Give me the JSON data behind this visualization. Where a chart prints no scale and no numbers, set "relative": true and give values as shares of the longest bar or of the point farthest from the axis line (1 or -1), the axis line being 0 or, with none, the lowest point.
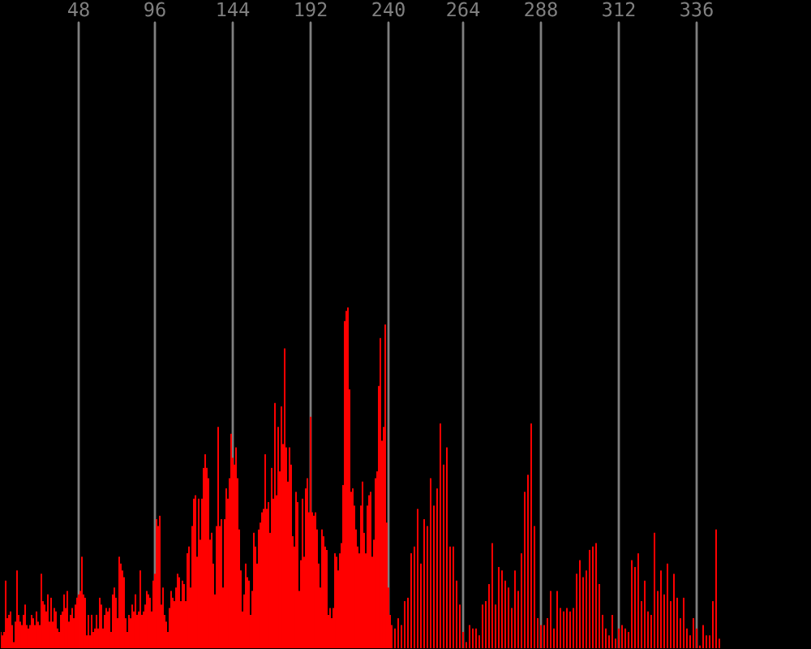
{
  "chart_data": {
    "type": "bar",
    "relative": true,
    "grid": "x",
    "color": "#ff0000",
    "categories": [
      null,
      null,
      null,
      null,
      null,
      null,
      null,
      null,
      null,
      null,
      null,
      null,
      null,
      null,
      null,
      null,
      null,
      null,
      null,
      null,
      null,
      null,
      null,
      null,
      null,
      null,
      null,
      null,
      null,
      null,
      null,
      null,
      null,
      null,
      null,
      null,
      null,
      null,
      null,
      null,
      null,
      null,
      null,
      null,
      null,
      null,
      null,
      null,
      "48",
      null,
      null,
      null,
      null,
      null,
      null,
      null,
      null,
      null,
      null,
      null,
      null,
      null,
      null,
      null,
      null,
      null,
      null,
      null,
      null,
      null,
      null,
      null,
      null,
      null,
      null,
      null,
      null,
      null,
      null,
      null,
      null,
      null,
      null,
      null,
      null,
      null,
      null,
      null,
      null,
      null,
      null,
      null,
      null,
      null,
      null,
      "96",
      null,
      null,
      null,
      null,
      null,
      null,
      null,
      null,
      null,
      null,
      null,
      null,
      null,
      null,
      null,
      null,
      null,
      null,
      null,
      null,
      null,
      null,
      null,
      null,
      null,
      null,
      null,
      null,
      null,
      null,
      null,
      null,
      null,
      null,
      null,
      null,
      null,
      null,
      null,
      null,
      null,
      null,
      null,
      null,
      null,
      null,
      null,
      "144",
      null,
      null,
      null,
      null,
      null,
      null,
      null,
      null,
      null,
      null,
      null,
      null,
      null,
      null,
      null,
      null,
      null,
      null,
      null,
      null,
      null,
      null,
      null,
      null,
      null,
      null,
      null,
      null,
      null,
      null,
      null,
      null,
      null,
      null,
      null,
      null,
      null,
      null,
      null,
      null,
      null,
      null,
      null,
      null,
      null,
      null,
      null,
      "192",
      null,
      null,
      null,
      null,
      null,
      null,
      null,
      null,
      null,
      null,
      null,
      null,
      null,
      null,
      null,
      null,
      null,
      null,
      null,
      null,
      null,
      null,
      null,
      null,
      null,
      null,
      null,
      null,
      null,
      null,
      null,
      null,
      null,
      null,
      null,
      null,
      null,
      null,
      null,
      null,
      null,
      null,
      null,
      null,
      null,
      null,
      null,
      "240",
      null,
      null,
      null,
      null,
      null,
      null,
      null,
      null,
      null,
      null,
      null,
      null,
      null,
      null,
      null,
      null,
      null,
      null,
      null,
      null,
      null,
      null,
      null,
      null,
      null,
      null,
      null,
      null,
      null,
      null,
      null,
      null,
      null,
      null,
      null,
      null,
      null,
      null,
      null,
      null,
      null,
      null,
      null,
      null,
      null,
      "264",
      null,
      null,
      null,
      null,
      null,
      null,
      null,
      null,
      null,
      null,
      null,
      null,
      null,
      null,
      null,
      null,
      null,
      null,
      null,
      null,
      null,
      null,
      null,
      null,
      null,
      null,
      null,
      null,
      null,
      null,
      null,
      null,
      null,
      null,
      null,
      null,
      null,
      null,
      null,
      null,
      null,
      null,
      null,
      null,
      null,
      null,
      null,
      "288",
      null,
      null,
      null,
      null,
      null,
      null,
      null,
      null,
      null,
      null,
      null,
      null,
      null,
      null,
      null,
      null,
      null,
      null,
      null,
      null,
      null,
      null,
      null,
      null,
      null,
      null,
      null,
      null,
      null,
      null,
      null,
      null,
      null,
      null,
      null,
      null,
      null,
      null,
      null,
      null,
      null,
      null,
      null,
      null,
      null,
      null,
      null,
      "312",
      null,
      null,
      null,
      null,
      null,
      null,
      null,
      null,
      null,
      null,
      null,
      null,
      null,
      null,
      null,
      null,
      null,
      null,
      null,
      null,
      null,
      null,
      null,
      null,
      null,
      null,
      null,
      null,
      null,
      null,
      null,
      null,
      null,
      null,
      null,
      null,
      null,
      null,
      null,
      null,
      null,
      null,
      null,
      null,
      null,
      null,
      null,
      "336",
      null,
      null,
      null,
      null,
      null,
      null,
      null,
      null,
      null,
      null,
      null,
      null,
      null,
      null
    ],
    "values": [
      0.05,
      0.04,
      0.05,
      0.2,
      0.09,
      0.1,
      0.11,
      0.07,
      0.02,
      0.08,
      0.23,
      0.1,
      0.08,
      0.07,
      0.1,
      0.13,
      0.07,
      0.06,
      0.07,
      0.1,
      0.09,
      0.07,
      0.11,
      0.08,
      0.07,
      0.22,
      0.14,
      0.13,
      0.11,
      0.16,
      0.08,
      0.15,
      0.08,
      0.12,
      0.11,
      0.06,
      0.05,
      0.1,
      0.11,
      0.16,
      0.12,
      0.17,
      0.08,
      0.1,
      0.12,
      0.09,
      0.13,
      0.15,
      0.16,
      0.17,
      0.27,
      0.16,
      0.15,
      0.04,
      0.1,
      0.04,
      0.1,
      0.05,
      0.06,
      0.1,
      0.06,
      0.15,
      0.13,
      0.06,
      0.1,
      0.12,
      0.11,
      0.12,
      0.05,
      0.16,
      0.18,
      0.15,
      0.09,
      0.27,
      0.25,
      0.23,
      0.21,
      0.09,
      0.05,
      0.1,
      0.09,
      0.13,
      0.11,
      0.16,
      0.1,
      0.11,
      0.23,
      0.1,
      0.11,
      0.13,
      0.17,
      0.16,
      0.15,
      0.11,
      0.2,
      0.22,
      0.38,
      0.36,
      0.39,
      0.13,
      0.18,
      0.1,
      0.08,
      0.05,
      0.12,
      0.17,
      0.15,
      0.14,
      0.18,
      0.22,
      0.21,
      0.14,
      0.2,
      0.19,
      0.14,
      0.28,
      0.3,
      0.18,
      0.36,
      0.44,
      0.45,
      0.27,
      0.44,
      0.32,
      0.44,
      0.53,
      0.57,
      0.53,
      0.5,
      0.32,
      0.34,
      0.25,
      0.16,
      0.36,
      0.65,
      0.36,
      0.38,
      0.18,
      0.38,
      0.47,
      0.44,
      0.5,
      0.63,
      0.56,
      0.54,
      0.59,
      0.5,
      0.35,
      0.23,
      0.11,
      0.16,
      0.25,
      0.21,
      0.2,
      0.1,
      0.17,
      0.34,
      0.3,
      0.25,
      0.35,
      0.37,
      0.4,
      0.41,
      0.57,
      0.41,
      0.43,
      0.34,
      0.53,
      0.44,
      0.72,
      0.45,
      0.65,
      0.52,
      0.71,
      0.6,
      0.88,
      0.59,
      0.49,
      0.59,
      0.54,
      0.33,
      0.3,
      0.46,
      0.43,
      0.17,
      0.26,
      0.44,
      0.27,
      0.47,
      0.5,
      0.4,
      0.68,
      0.4,
      0.39,
      0.4,
      0.35,
      0.25,
      0.18,
      0.35,
      0.33,
      0.3,
      0.29,
      0.1,
      0.12,
      0.09,
      0.12,
      0.28,
      0.27,
      0.23,
      0.28,
      0.31,
      0.48,
      0.96,
      0.99,
      1,
      0.76,
      0.46,
      0.47,
      0.42,
      0.35,
      0.3,
      0.28,
      0.42,
      0.49,
      0.34,
      0.28,
      0.42,
      0.45,
      0.46,
      0.27,
      0.32,
      0.5,
      0.52,
      0.77,
      0.91,
      0.61,
      0.65,
      0.95,
      0.37,
      0.18,
      0.1,
      0.07,
      null,
      0.06,
      null,
      0.09,
      null,
      0.07,
      null,
      0.14,
      null,
      0.15,
      null,
      0.28,
      null,
      0.3,
      null,
      0.41,
      null,
      0.25,
      null,
      0.38,
      null,
      0.36,
      null,
      0.5,
      null,
      0.42,
      null,
      0.47,
      null,
      0.66,
      null,
      0.54,
      null,
      0.59,
      null,
      0.3,
      null,
      0.3,
      null,
      0.2,
      null,
      0.13,
      null,
      0.05,
      null,
      0.02,
      null,
      0.07,
      null,
      0.06,
      null,
      0.06,
      null,
      0.04,
      null,
      0.13,
      null,
      0.14,
      null,
      0.19,
      null,
      0.31,
      null,
      0.13,
      null,
      0.24,
      null,
      0.23,
      null,
      0.2,
      null,
      0.18,
      null,
      0.12,
      null,
      0.23,
      null,
      0.17,
      null,
      0.28,
      null,
      0.46,
      null,
      0.51,
      null,
      0.66,
      null,
      0.36,
      null,
      0.09,
      null,
      0.07,
      null,
      0.07,
      null,
      0.09,
      null,
      0.17,
      null,
      0.06,
      null,
      0.17,
      null,
      0.12,
      null,
      0.11,
      null,
      0.12,
      null,
      0.11,
      null,
      0.12,
      null,
      0.22,
      null,
      0.26,
      null,
      0.21,
      null,
      0.23,
      null,
      0.29,
      null,
      0.3,
      null,
      0.31,
      null,
      0.19,
      null,
      0.1,
      null,
      0.06,
      null,
      0.04,
      null,
      0.1,
      null,
      0.03,
      null,
      0.06,
      null,
      0.07,
      null,
      0.06,
      null,
      0.05,
      null,
      0.26,
      null,
      0.24,
      null,
      0.28,
      null,
      0.14,
      null,
      0.2,
      null,
      0.11,
      null,
      0.1,
      null,
      0.34,
      null,
      0.17,
      null,
      0.23,
      null,
      0.16,
      null,
      0.25,
      null,
      0.14,
      null,
      0.22,
      null,
      0.15,
      null,
      0.09,
      null,
      0.15,
      null,
      0.06,
      null,
      0.04,
      null,
      0.09,
      null,
      0.06,
      null,
      0.01,
      null,
      0.07,
      null,
      0.04,
      null,
      0.04,
      null,
      0.14,
      null,
      0.35,
      null,
      0.03
    ]
  }
}
